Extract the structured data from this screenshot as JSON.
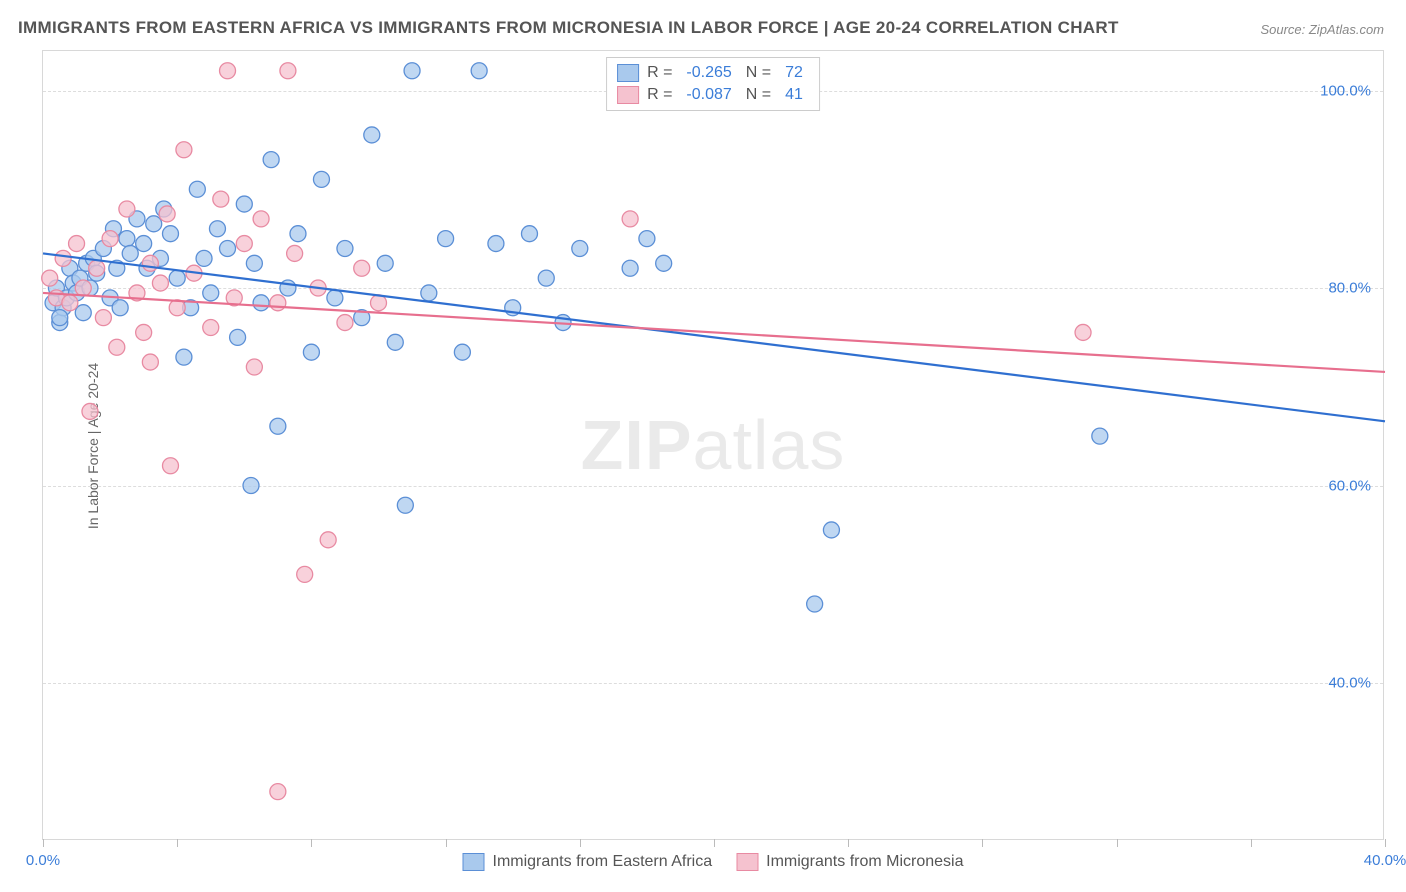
{
  "title": "IMMIGRANTS FROM EASTERN AFRICA VS IMMIGRANTS FROM MICRONESIA IN LABOR FORCE | AGE 20-24 CORRELATION CHART",
  "source": "Source: ZipAtlas.com",
  "y_axis_title": "In Labor Force | Age 20-24",
  "watermark": {
    "bold": "ZIP",
    "light": "atlas"
  },
  "chart": {
    "type": "scatter-with-regression",
    "background_color": "#ffffff",
    "grid_color": "#dddddd",
    "border_color": "#d8d8d8",
    "axis_label_color": "#3b7dd8",
    "x_min": 0.0,
    "x_max": 40.0,
    "y_min": 24.0,
    "y_max": 104.0,
    "y_ticks": [
      40.0,
      60.0,
      80.0,
      100.0
    ],
    "y_tick_labels": [
      "40.0%",
      "60.0%",
      "80.0%",
      "100.0%"
    ],
    "x_ticks": [
      0.0,
      4.0,
      8.0,
      12.0,
      16.0,
      20.0,
      24.0,
      28.0,
      32.0,
      36.0,
      40.0
    ],
    "x_tick_labels_shown": {
      "0.0": "0.0%",
      "40.0": "40.0%"
    },
    "marker_radius": 8,
    "legend_top": [
      {
        "swatch_fill": "#a9c9ed",
        "swatch_stroke": "#5b8fd6",
        "r_label": "R =",
        "r_value": "-0.265",
        "n_label": "N =",
        "n_value": "72"
      },
      {
        "swatch_fill": "#f5c2cf",
        "swatch_stroke": "#e88aa2",
        "r_label": "R =",
        "r_value": "-0.087",
        "n_label": "N =",
        "n_value": "41"
      }
    ],
    "legend_bottom": [
      {
        "swatch_fill": "#a9c9ed",
        "swatch_stroke": "#5b8fd6",
        "label": "Immigrants from Eastern Africa"
      },
      {
        "swatch_fill": "#f5c2cf",
        "swatch_stroke": "#e88aa2",
        "label": "Immigrants from Micronesia"
      }
    ],
    "series": [
      {
        "name": "eastern_africa",
        "fill": "#a9c9ed",
        "stroke": "#5b8fd6",
        "opacity": 0.75,
        "regression": {
          "x1": 0.0,
          "y1": 83.5,
          "x2": 40.0,
          "y2": 66.5,
          "color": "#2f6fd0",
          "width": 2.2
        },
        "points": [
          [
            0.3,
            78.5
          ],
          [
            0.4,
            80.0
          ],
          [
            0.5,
            76.5
          ],
          [
            0.6,
            78.0
          ],
          [
            0.7,
            79.0
          ],
          [
            0.8,
            82.0
          ],
          [
            0.9,
            80.5
          ],
          [
            1.0,
            79.5
          ],
          [
            1.1,
            81.0
          ],
          [
            1.2,
            77.5
          ],
          [
            1.3,
            82.5
          ],
          [
            1.4,
            80.0
          ],
          [
            1.5,
            83.0
          ],
          [
            1.6,
            81.5
          ],
          [
            1.8,
            84.0
          ],
          [
            2.0,
            79.0
          ],
          [
            2.1,
            86.0
          ],
          [
            2.2,
            82.0
          ],
          [
            2.3,
            78.0
          ],
          [
            2.5,
            85.0
          ],
          [
            2.6,
            83.5
          ],
          [
            2.8,
            87.0
          ],
          [
            3.0,
            84.5
          ],
          [
            3.1,
            82.0
          ],
          [
            3.3,
            86.5
          ],
          [
            3.5,
            83.0
          ],
          [
            3.6,
            88.0
          ],
          [
            3.8,
            85.5
          ],
          [
            4.0,
            81.0
          ],
          [
            4.2,
            73.0
          ],
          [
            4.4,
            78.0
          ],
          [
            4.6,
            90.0
          ],
          [
            4.8,
            83.0
          ],
          [
            5.0,
            79.5
          ],
          [
            5.2,
            86.0
          ],
          [
            5.5,
            84.0
          ],
          [
            5.8,
            75.0
          ],
          [
            6.0,
            88.5
          ],
          [
            6.3,
            82.5
          ],
          [
            6.5,
            78.5
          ],
          [
            6.8,
            93.0
          ],
          [
            7.0,
            66.0
          ],
          [
            7.3,
            80.0
          ],
          [
            7.6,
            85.5
          ],
          [
            6.2,
            60.0
          ],
          [
            8.0,
            73.5
          ],
          [
            8.3,
            91.0
          ],
          [
            8.7,
            79.0
          ],
          [
            9.0,
            84.0
          ],
          [
            9.5,
            77.0
          ],
          [
            9.8,
            95.5
          ],
          [
            10.2,
            82.5
          ],
          [
            10.5,
            74.5
          ],
          [
            11.0,
            102.0
          ],
          [
            10.8,
            58.0
          ],
          [
            11.5,
            79.5
          ],
          [
            12.0,
            85.0
          ],
          [
            12.5,
            73.5
          ],
          [
            13.0,
            102.0
          ],
          [
            13.5,
            84.5
          ],
          [
            14.0,
            78.0
          ],
          [
            14.5,
            85.5
          ],
          [
            15.0,
            81.0
          ],
          [
            15.5,
            76.5
          ],
          [
            16.0,
            84.0
          ],
          [
            17.5,
            82.0
          ],
          [
            18.0,
            85.0
          ],
          [
            18.5,
            82.5
          ],
          [
            23.0,
            48.0
          ],
          [
            23.5,
            55.5
          ],
          [
            31.5,
            65.0
          ],
          [
            0.5,
            77.0
          ]
        ]
      },
      {
        "name": "micronesia",
        "fill": "#f5c2cf",
        "stroke": "#e88aa2",
        "opacity": 0.75,
        "regression": {
          "x1": 0.0,
          "y1": 79.5,
          "x2": 40.0,
          "y2": 71.5,
          "color": "#e76f8e",
          "width": 2.2
        },
        "points": [
          [
            0.2,
            81.0
          ],
          [
            0.4,
            79.0
          ],
          [
            0.6,
            83.0
          ],
          [
            0.8,
            78.5
          ],
          [
            1.0,
            84.5
          ],
          [
            1.2,
            80.0
          ],
          [
            1.4,
            67.5
          ],
          [
            1.6,
            82.0
          ],
          [
            1.8,
            77.0
          ],
          [
            2.0,
            85.0
          ],
          [
            2.2,
            74.0
          ],
          [
            2.5,
            88.0
          ],
          [
            2.8,
            79.5
          ],
          [
            3.0,
            75.5
          ],
          [
            3.2,
            72.5
          ],
          [
            3.5,
            80.5
          ],
          [
            3.7,
            87.5
          ],
          [
            3.8,
            62.0
          ],
          [
            4.0,
            78.0
          ],
          [
            4.2,
            94.0
          ],
          [
            4.5,
            81.5
          ],
          [
            5.0,
            76.0
          ],
          [
            5.3,
            89.0
          ],
          [
            5.5,
            102.0
          ],
          [
            5.7,
            79.0
          ],
          [
            6.0,
            84.5
          ],
          [
            6.3,
            72.0
          ],
          [
            6.5,
            87.0
          ],
          [
            7.0,
            78.5
          ],
          [
            7.3,
            102.0
          ],
          [
            7.5,
            83.5
          ],
          [
            7.8,
            51.0
          ],
          [
            8.2,
            80.0
          ],
          [
            8.5,
            54.5
          ],
          [
            9.0,
            76.5
          ],
          [
            7.0,
            29.0
          ],
          [
            9.5,
            82.0
          ],
          [
            10.0,
            78.5
          ],
          [
            17.5,
            87.0
          ],
          [
            31.0,
            75.5
          ],
          [
            3.2,
            82.5
          ]
        ]
      }
    ]
  }
}
